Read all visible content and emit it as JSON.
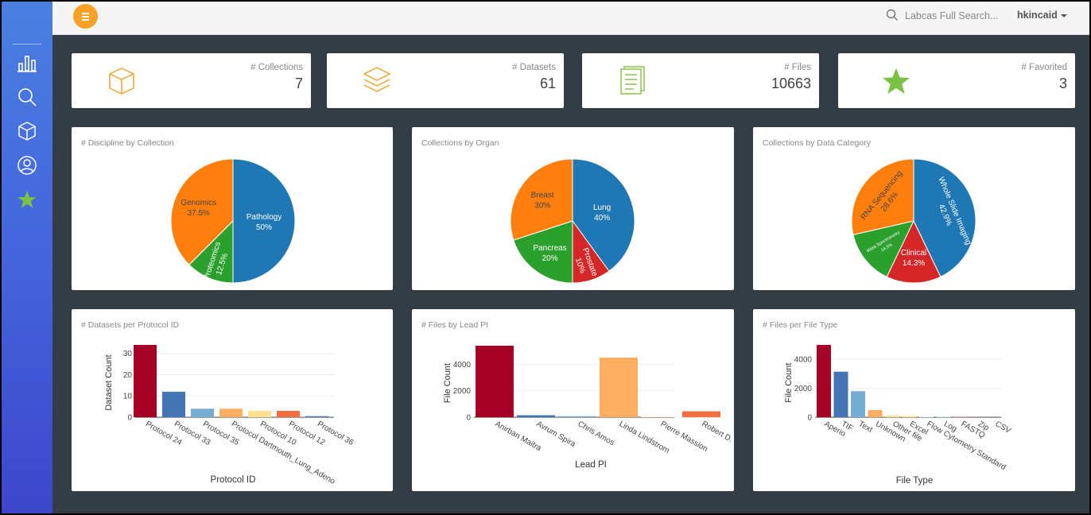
{
  "topbar": {
    "search_placeholder": "Labcas Full Search...",
    "username": "hkincaid"
  },
  "sidebar": {
    "items": [
      {
        "name": "dashboard",
        "icon": "bar-chart-icon"
      },
      {
        "name": "search",
        "icon": "search-icon"
      },
      {
        "name": "collections",
        "icon": "cube-icon"
      },
      {
        "name": "profile",
        "icon": "user-icon"
      },
      {
        "name": "favorites",
        "icon": "star-icon"
      }
    ]
  },
  "stats": [
    {
      "label": "# Collections",
      "value": "7",
      "icon": "cube-icon",
      "color": "#f7a128"
    },
    {
      "label": "# Datasets",
      "value": "61",
      "icon": "layers-icon",
      "color": "#f7a128"
    },
    {
      "label": "# Files",
      "value": "10663",
      "icon": "files-icon",
      "color": "#8bc34a"
    },
    {
      "label": "# Favorited",
      "value": "3",
      "icon": "star-icon",
      "color": "#7cc242"
    }
  ],
  "colors": {
    "accent": "#f7a128",
    "blue": "#1f77b4",
    "orange": "#ff7f0e",
    "green": "#2ca02c",
    "red": "#d62728"
  },
  "chart_data": [
    {
      "type": "pie",
      "title": "# Discipline by Collection",
      "slices": [
        {
          "label": "Pathology",
          "pct": "50%",
          "value": 50,
          "color": "#1f77b4"
        },
        {
          "label": "Proteomics",
          "pct": "12.5%",
          "value": 12.5,
          "color": "#2ca02c"
        },
        {
          "label": "Genomics",
          "pct": "37.5%",
          "value": 37.5,
          "color": "#ff7f0e"
        }
      ]
    },
    {
      "type": "pie",
      "title": "Collections by Organ",
      "slices": [
        {
          "label": "Lung",
          "pct": "40%",
          "value": 40,
          "color": "#1f77b4"
        },
        {
          "label": "Prostate",
          "pct": "10%",
          "value": 10,
          "color": "#d62728"
        },
        {
          "label": "Pancreas",
          "pct": "20%",
          "value": 20,
          "color": "#2ca02c"
        },
        {
          "label": "Breast",
          "pct": "30%",
          "value": 30,
          "color": "#ff7f0e"
        }
      ]
    },
    {
      "type": "pie",
      "title": "Collections by Data Category",
      "slices": [
        {
          "label": "Whole Slide Imaging",
          "pct": "42.9%",
          "value": 42.9,
          "color": "#1f77b4"
        },
        {
          "label": "Clinical",
          "pct": "14.3%",
          "value": 14.3,
          "color": "#d62728"
        },
        {
          "label": "Mass Spectrometry",
          "pct": "14.3%",
          "value": 14.3,
          "color": "#2ca02c"
        },
        {
          "label": "RNA Sequencing",
          "pct": "28.6%",
          "value": 28.6,
          "color": "#ff7f0e"
        }
      ]
    },
    {
      "type": "bar",
      "title": "# Datasets per Protocol ID",
      "xlabel": "Protocol ID",
      "ylabel": "Dataset Count",
      "ylim": [
        0,
        34
      ],
      "yticks": [
        0,
        10,
        20,
        30
      ],
      "categories": [
        "Protocol 24",
        "Protocol 33",
        "Protocol 35",
        "Protocol Dartmouth_Lung_Adeno",
        "Protocol 10",
        "Protocol 12",
        "Protocol 36"
      ],
      "values": [
        34,
        12,
        4,
        4,
        3,
        3,
        0.5
      ],
      "colors": [
        "#a50026",
        "#4575b4",
        "#74add1",
        "#fdae61",
        "#fee090",
        "#f46d43",
        "#4575b4"
      ]
    },
    {
      "type": "bar",
      "title": "# Files by Lead PI",
      "xlabel": "Lead PI",
      "ylabel": "File Count",
      "ylim": [
        0,
        5400
      ],
      "yticks": [
        0,
        2000,
        4000
      ],
      "categories": [
        "Anirban Maitra",
        "Avrum Spira",
        "Chris Amos",
        "Linda Lindstrom",
        "Pierre Massion",
        "Robert D. Cardiff"
      ],
      "values": [
        5400,
        150,
        80,
        4500,
        30,
        450
      ],
      "colors": [
        "#a50026",
        "#4575b4",
        "#74add1",
        "#fdae61",
        "#fee090",
        "#f46d43"
      ]
    },
    {
      "type": "bar",
      "title": "# Files per File Type",
      "xlabel": "File Type",
      "ylabel": "File Count",
      "ylim": [
        0,
        5000
      ],
      "yticks": [
        0,
        2000,
        4000
      ],
      "categories": [
        "Aperio",
        "TIF",
        "Text",
        "Unknown",
        "Other file",
        "Excel",
        "Flow Cytometry Standard",
        "Log",
        "FASTQ",
        "Zip",
        "CSV"
      ],
      "values": [
        5000,
        3150,
        1800,
        500,
        120,
        80,
        40,
        30,
        20,
        15,
        10
      ],
      "colors": [
        "#a50026",
        "#4575b4",
        "#74add1",
        "#fdae61",
        "#fee090",
        "#fee090",
        "#e0f3f8",
        "#abd9e9",
        "#f46d43",
        "#d73027",
        "#313695"
      ]
    }
  ]
}
